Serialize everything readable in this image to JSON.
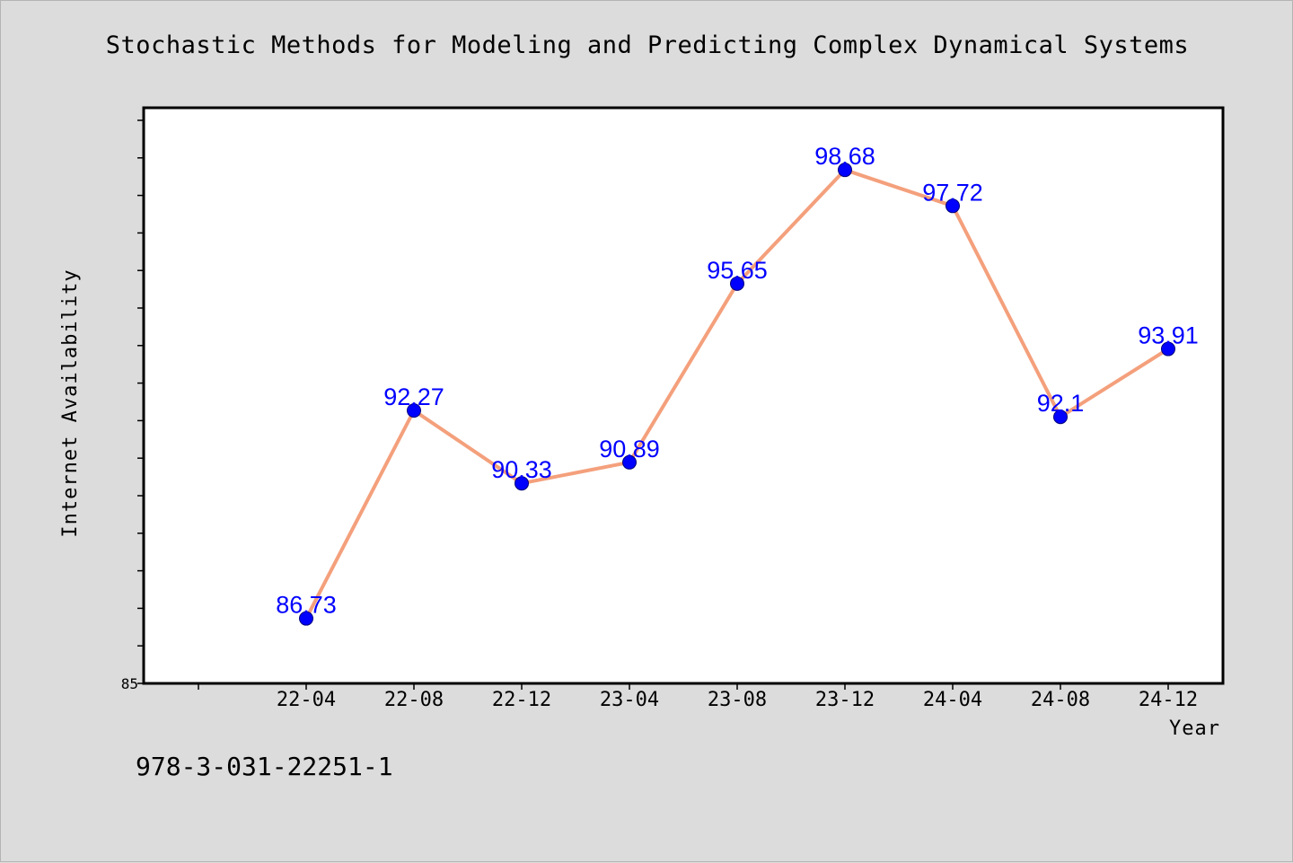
{
  "chart_data": {
    "type": "line",
    "title": "Stochastic Methods for Modeling and Predicting Complex Dynamical Systems",
    "xlabel": "Year",
    "ylabel": "Internet Availability",
    "categories": [
      "22-04",
      "22-08",
      "22-12",
      "23-04",
      "23-08",
      "23-12",
      "24-04",
      "24-08",
      "24-12"
    ],
    "series": [
      {
        "values": [
          86.73,
          92.27,
          90.33,
          90.89,
          95.65,
          98.68,
          97.72,
          92.1,
          93.91
        ],
        "data_labels": [
          "86.73",
          "92.27",
          "90.33",
          "90.89",
          "95.65",
          "98.68",
          "97.72",
          "92.1",
          "93.91"
        ],
        "line_color": "#f4a07c",
        "marker_color": "#0000ff"
      }
    ],
    "ylim": [
      85,
      100
    ],
    "y_tick_labels": [
      "85"
    ],
    "grid": false,
    "legend": "none"
  },
  "footer": {
    "code": "978-3-031-22251-1"
  },
  "colors": {
    "background": "#dcdcdc",
    "plot_background": "#ffffff",
    "label_color": "#0000ff"
  }
}
